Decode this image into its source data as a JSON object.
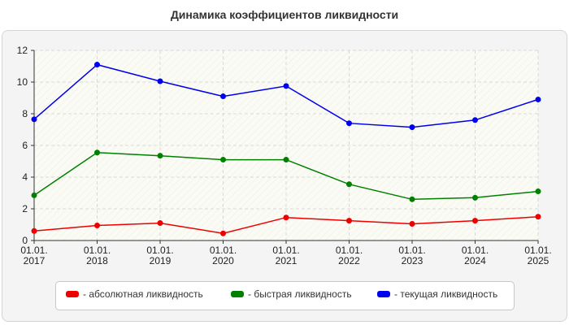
{
  "chart_data": {
    "type": "line",
    "title": "Динамика коэффициентов ликвидности",
    "xlabel": "",
    "ylabel": "",
    "categories": [
      [
        "01.01.",
        "2017"
      ],
      [
        "01.01.",
        "2018"
      ],
      [
        "01.01.",
        "2019"
      ],
      [
        "01.01.",
        "2020"
      ],
      [
        "01.01.",
        "2021"
      ],
      [
        "01.01.",
        "2022"
      ],
      [
        "01.01.",
        "2023"
      ],
      [
        "01.01.",
        "2024"
      ],
      [
        "01.01.",
        "2025"
      ]
    ],
    "ylim": [
      0,
      12
    ],
    "yticks": [
      0,
      2,
      4,
      6,
      8,
      10,
      12
    ],
    "grid": true,
    "legend_position": "bottom",
    "series": [
      {
        "name": "- абсолютная ликвидность",
        "color": "#ee0000",
        "values": [
          0.6,
          0.95,
          1.1,
          0.45,
          1.45,
          1.25,
          1.05,
          1.25,
          1.5
        ]
      },
      {
        "name": "- быстрая ликвидность",
        "color": "#008000",
        "values": [
          2.85,
          5.55,
          5.35,
          5.1,
          5.1,
          3.55,
          2.6,
          2.7,
          3.1
        ]
      },
      {
        "name": "- текущая ликвидность",
        "color": "#0000ee",
        "values": [
          7.65,
          11.1,
          10.05,
          9.1,
          9.75,
          7.4,
          7.15,
          7.6,
          8.9
        ]
      }
    ]
  }
}
